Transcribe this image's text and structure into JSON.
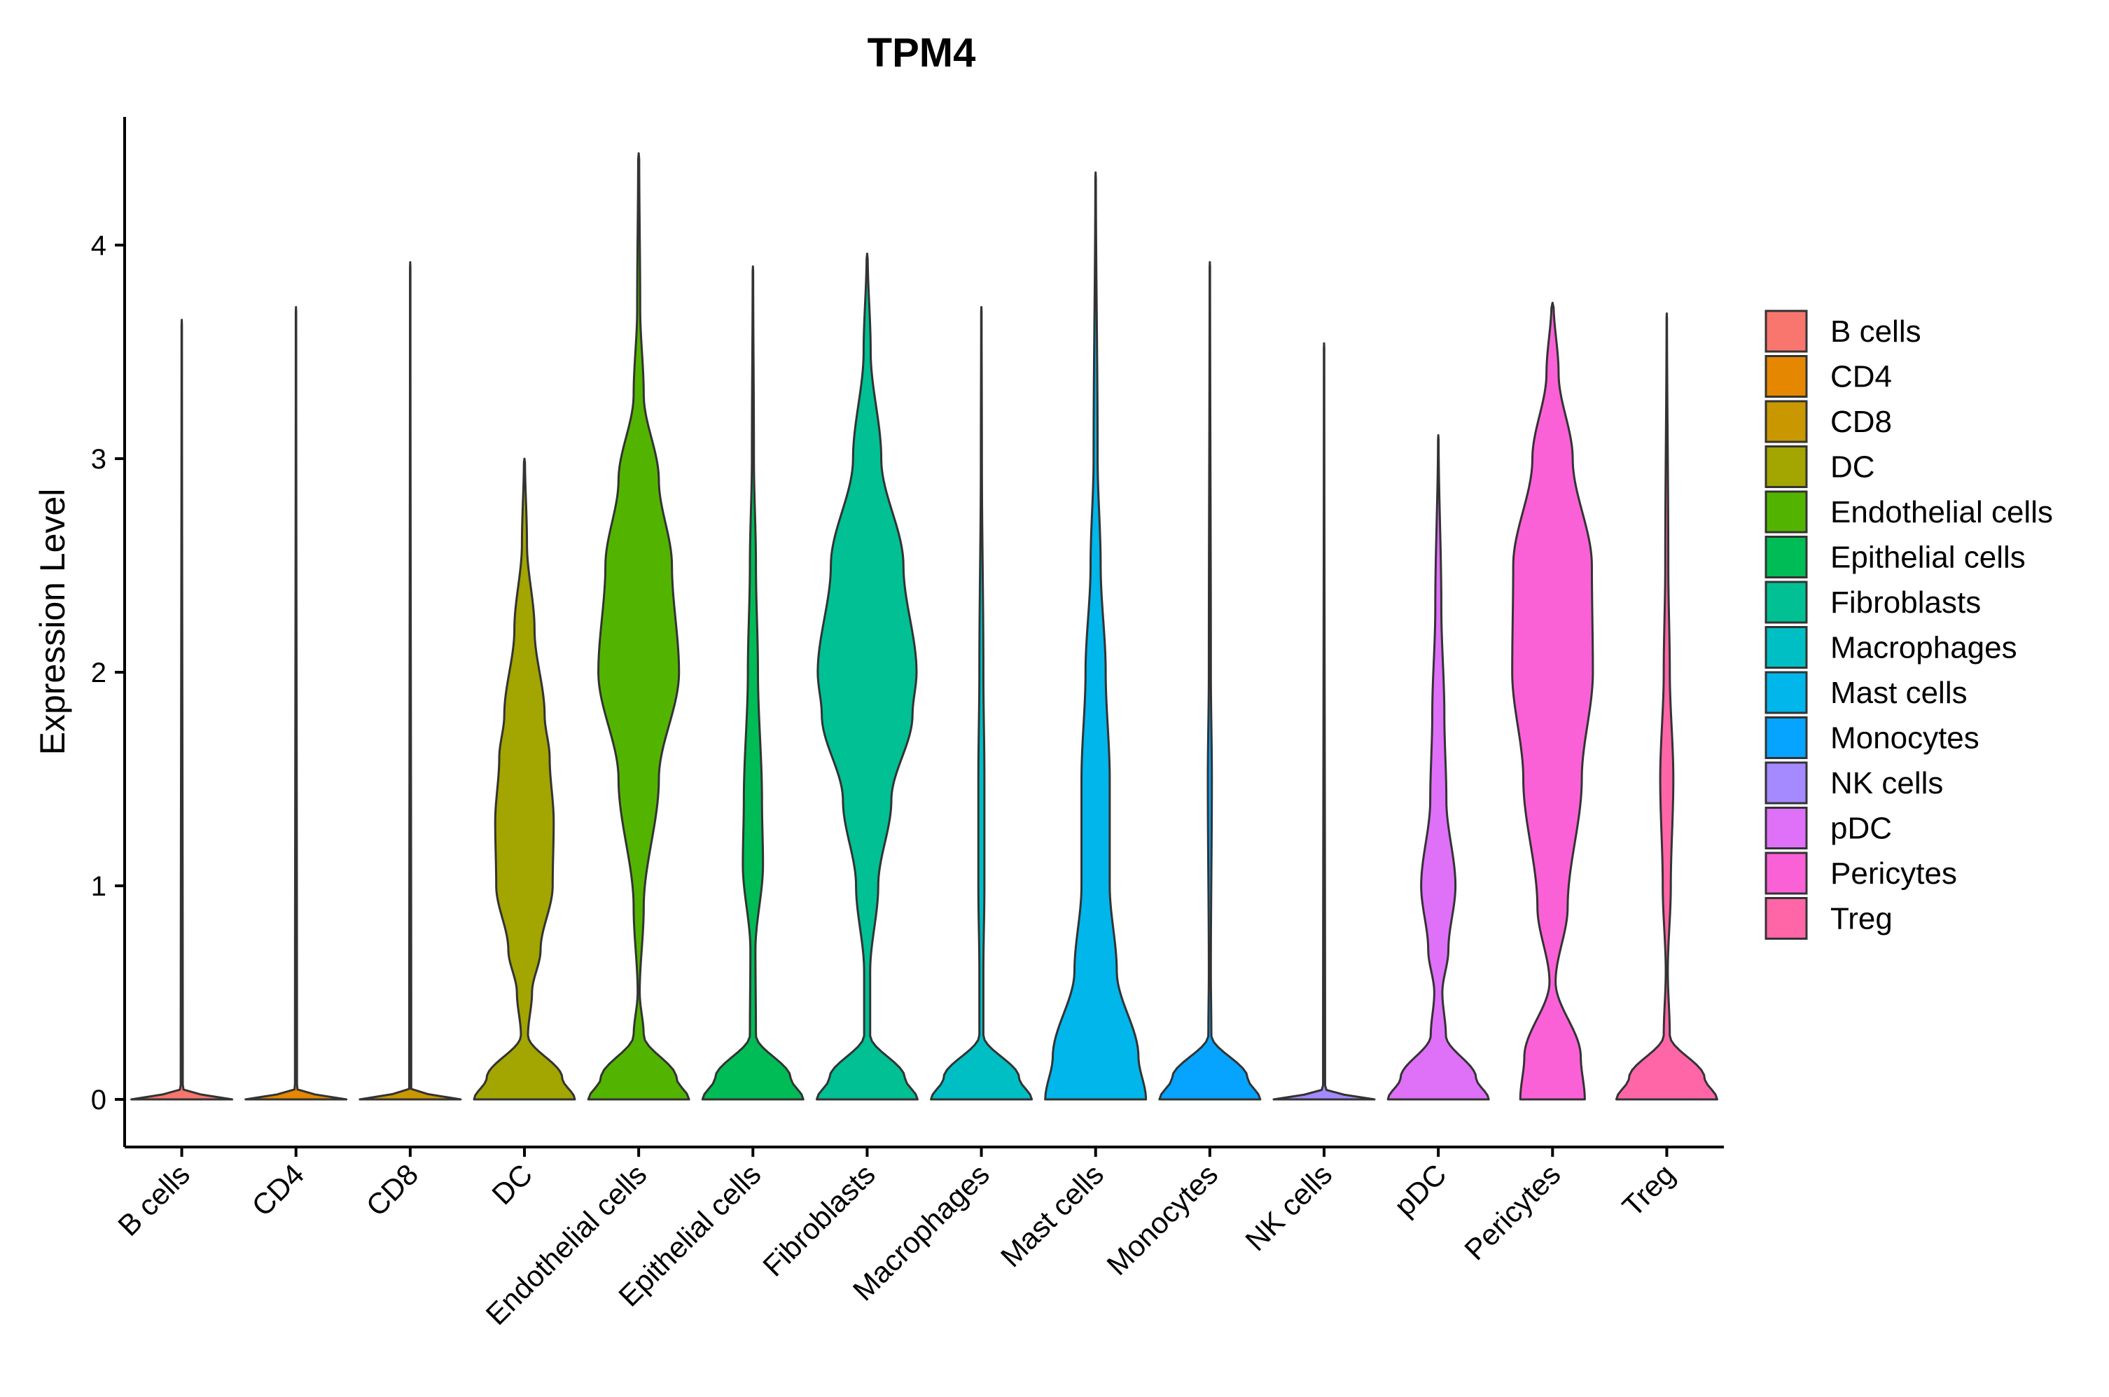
{
  "chart_data": {
    "type": "violin",
    "title": "TPM4",
    "xlabel": "",
    "ylabel": "Expression Level",
    "ylim": [
      -0.22,
      4.6
    ],
    "yticks": [
      0,
      1,
      2,
      3,
      4
    ],
    "grid": false,
    "legend_position": "right",
    "categories": [
      "B cells",
      "CD4",
      "CD8",
      "DC",
      "Endothelial cells",
      "Epithelial cells",
      "Fibroblasts",
      "Macrophages",
      "Mast cells",
      "Monocytes",
      "NK cells",
      "pDC",
      "Pericytes",
      "Treg"
    ],
    "series": [
      {
        "name": "B cells",
        "color": "#F8766D",
        "max": 3.65,
        "profile": [
          [
            0,
            1.0
          ],
          [
            0.01,
            0.5
          ],
          [
            0.05,
            0.02
          ],
          [
            3.65,
            0.004
          ]
        ]
      },
      {
        "name": "CD4",
        "color": "#E58700",
        "max": 3.71,
        "profile": [
          [
            0,
            1.0
          ],
          [
            0.01,
            0.5
          ],
          [
            0.05,
            0.02
          ],
          [
            3.71,
            0.004
          ]
        ]
      },
      {
        "name": "CD8",
        "color": "#C99800",
        "max": 3.92,
        "profile": [
          [
            0,
            1.0
          ],
          [
            0.01,
            0.5
          ],
          [
            0.05,
            0.02
          ],
          [
            3.92,
            0.004
          ]
        ]
      },
      {
        "name": "DC",
        "color": "#A3A500",
        "max": 3.0,
        "profile": [
          [
            0,
            1.0
          ],
          [
            0.1,
            0.75
          ],
          [
            0.3,
            0.07
          ],
          [
            0.5,
            0.15
          ],
          [
            0.7,
            0.32
          ],
          [
            1.0,
            0.56
          ],
          [
            1.3,
            0.58
          ],
          [
            1.6,
            0.5
          ],
          [
            1.8,
            0.4
          ],
          [
            2.2,
            0.2
          ],
          [
            2.6,
            0.05
          ],
          [
            3.0,
            0.01
          ]
        ]
      },
      {
        "name": "Endothelial cells",
        "color": "#53B400",
        "max": 4.43,
        "profile": [
          [
            0,
            1.0
          ],
          [
            0.1,
            0.75
          ],
          [
            0.3,
            0.1
          ],
          [
            0.5,
            0.02
          ],
          [
            0.9,
            0.1
          ],
          [
            1.5,
            0.4
          ],
          [
            2.0,
            0.8
          ],
          [
            2.5,
            0.66
          ],
          [
            2.9,
            0.4
          ],
          [
            3.3,
            0.1
          ],
          [
            3.7,
            0.03
          ],
          [
            4.43,
            0.01
          ]
        ]
      },
      {
        "name": "Epithelial cells",
        "color": "#00BC56",
        "max": 3.9,
        "profile": [
          [
            0,
            1.0
          ],
          [
            0.1,
            0.75
          ],
          [
            0.3,
            0.06
          ],
          [
            0.7,
            0.05
          ],
          [
            1.1,
            0.2
          ],
          [
            1.4,
            0.18
          ],
          [
            2.0,
            0.1
          ],
          [
            2.5,
            0.06
          ],
          [
            3.0,
            0.02
          ],
          [
            3.9,
            0.005
          ]
        ]
      },
      {
        "name": "Fibroblasts",
        "color": "#00C094",
        "max": 3.96,
        "profile": [
          [
            0,
            1.0
          ],
          [
            0.1,
            0.75
          ],
          [
            0.3,
            0.06
          ],
          [
            0.6,
            0.06
          ],
          [
            1.0,
            0.22
          ],
          [
            1.4,
            0.48
          ],
          [
            1.8,
            0.9
          ],
          [
            2.0,
            0.98
          ],
          [
            2.5,
            0.72
          ],
          [
            3.0,
            0.28
          ],
          [
            3.5,
            0.07
          ],
          [
            3.96,
            0.01
          ]
        ]
      },
      {
        "name": "Macrophages",
        "color": "#00BFC4",
        "max": 3.71,
        "profile": [
          [
            0,
            1.0
          ],
          [
            0.1,
            0.75
          ],
          [
            0.3,
            0.04
          ],
          [
            0.6,
            0.04
          ],
          [
            1.0,
            0.06
          ],
          [
            1.5,
            0.06
          ],
          [
            2.0,
            0.04
          ],
          [
            3.0,
            0.01
          ],
          [
            3.71,
            0.004
          ]
        ]
      },
      {
        "name": "Mast cells",
        "color": "#00B6EB",
        "max": 4.34,
        "profile": [
          [
            0,
            1.0
          ],
          [
            0.2,
            0.85
          ],
          [
            0.6,
            0.42
          ],
          [
            1.0,
            0.28
          ],
          [
            1.5,
            0.28
          ],
          [
            2.0,
            0.2
          ],
          [
            2.5,
            0.1
          ],
          [
            3.0,
            0.04
          ],
          [
            4.34,
            0.005
          ]
        ]
      },
      {
        "name": "Monocytes",
        "color": "#06A4FF",
        "max": 3.92,
        "profile": [
          [
            0,
            1.0
          ],
          [
            0.1,
            0.75
          ],
          [
            0.3,
            0.03
          ],
          [
            0.6,
            0.02
          ],
          [
            1.5,
            0.04
          ],
          [
            2.0,
            0.02
          ],
          [
            3.92,
            0.004
          ]
        ]
      },
      {
        "name": "NK cells",
        "color": "#A58AFF",
        "max": 3.54,
        "profile": [
          [
            0,
            1.0
          ],
          [
            0.01,
            0.5
          ],
          [
            0.05,
            0.02
          ],
          [
            3.54,
            0.004
          ]
        ]
      },
      {
        "name": "pDC",
        "color": "#DF70F8",
        "max": 3.11,
        "profile": [
          [
            0,
            1.0
          ],
          [
            0.1,
            0.75
          ],
          [
            0.3,
            0.15
          ],
          [
            0.5,
            0.08
          ],
          [
            0.7,
            0.2
          ],
          [
            1.0,
            0.34
          ],
          [
            1.4,
            0.16
          ],
          [
            1.8,
            0.12
          ],
          [
            2.3,
            0.06
          ],
          [
            3.11,
            0.005
          ]
        ]
      },
      {
        "name": "Pericytes",
        "color": "#FB61D7",
        "max": 3.73,
        "profile": [
          [
            0,
            0.64
          ],
          [
            0.2,
            0.56
          ],
          [
            0.55,
            0.06
          ],
          [
            0.9,
            0.3
          ],
          [
            1.5,
            0.58
          ],
          [
            2.0,
            0.8
          ],
          [
            2.5,
            0.78
          ],
          [
            3.0,
            0.4
          ],
          [
            3.4,
            0.12
          ],
          [
            3.73,
            0.02
          ]
        ]
      },
      {
        "name": "Treg",
        "color": "#FF66A8",
        "max": 3.68,
        "profile": [
          [
            0,
            1.0
          ],
          [
            0.1,
            0.75
          ],
          [
            0.3,
            0.06
          ],
          [
            0.6,
            0.02
          ],
          [
            1.0,
            0.08
          ],
          [
            1.5,
            0.13
          ],
          [
            2.0,
            0.06
          ],
          [
            2.5,
            0.03
          ],
          [
            3.68,
            0.004
          ]
        ]
      }
    ]
  }
}
